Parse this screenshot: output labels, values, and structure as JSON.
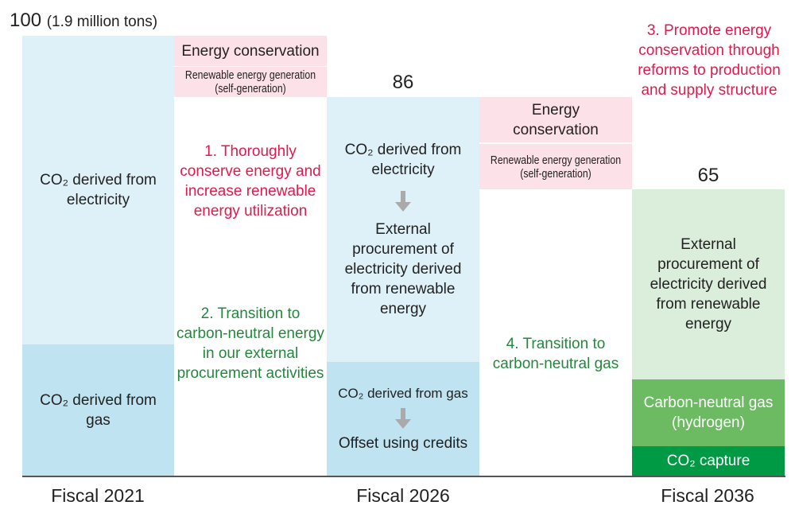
{
  "values": {
    "fy2021": "100",
    "fy2021_unit": "(1.9 million tons)",
    "fy2026": "86",
    "fy2036": "65"
  },
  "xlabels": [
    "Fiscal 2021",
    "Fiscal 2026",
    "Fiscal 2036"
  ],
  "fy2021": {
    "electricity": "CO₂ derived from electricity",
    "gas": "CO₂ derived from gas"
  },
  "reduction1": {
    "conservation": "Energy conservation",
    "renewable": "Renewable energy generation (self-generation)"
  },
  "reduction2": {
    "conservation": "Energy conservation",
    "renewable": "Renewable energy generation (self-generation)"
  },
  "fy2026": {
    "electricity": "CO₂ derived from electricity",
    "external": "External procurement of electricity derived from renewable energy",
    "gas": "CO₂ derived from gas",
    "offset": "Offset using credits"
  },
  "fy2036": {
    "external": "External procurement of electricity derived from renewable energy",
    "hydrogen": "Carbon-neutral gas (hydrogen)",
    "capture": "CO₂ capture"
  },
  "measures": {
    "m1": "1. Thoroughly conserve energy and increase renewable energy utilization",
    "m2": "2. Transition to carbon-neutral energy in our external procurement activities",
    "m3": "3. Promote energy conservation through reforms to production and supply structure",
    "m4": "4. Transition to carbon-neutral gas"
  },
  "colors": {
    "light_blue": "#dff1f8",
    "blue": "#bfe3f0",
    "pink": "#fde1e8",
    "light_green": "#dbeddb",
    "green": "#6cbb63",
    "dark_green": "#009a44",
    "red_text": "#e2194c",
    "green_text": "#23883d"
  }
}
